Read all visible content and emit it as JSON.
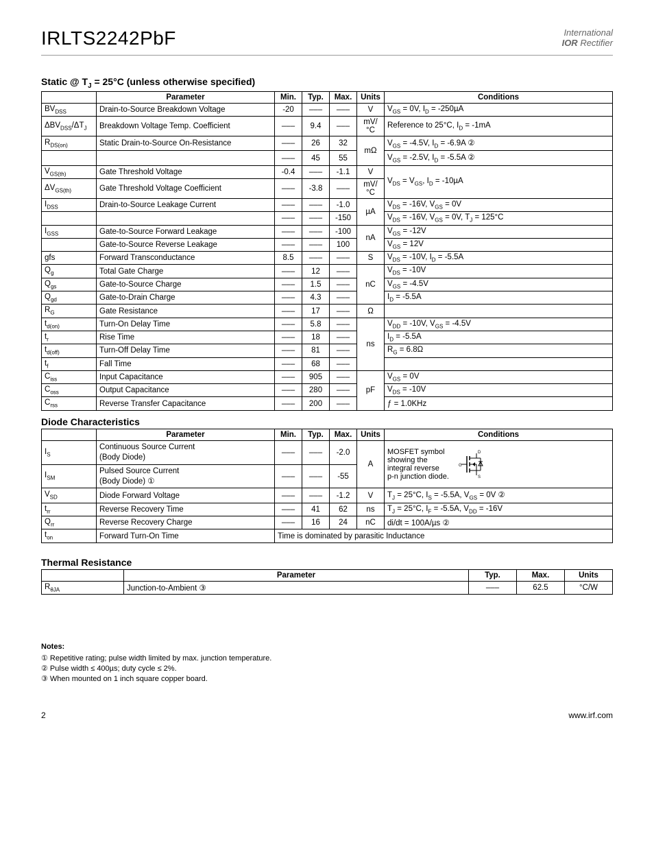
{
  "header": {
    "part": "IRLTS2242PbF",
    "logo1": "International",
    "logo2a": "IOR",
    "logo2b": " Rectifier"
  },
  "static": {
    "title": "Static @ T",
    "title_sub": "J",
    "title_rest": " = 25°C (unless otherwise specified)",
    "headers": {
      "param": "Parameter",
      "min": "Min.",
      "typ": "Typ.",
      "max": "Max.",
      "units": "Units",
      "cond": "Conditions"
    },
    "rows": [
      {
        "sym": "BV",
        "sub": "DSS",
        "param": "Drain-to-Source Breakdown Voltage",
        "min": "-20",
        "typ": "–––",
        "max": "–––",
        "units": "V",
        "cond": "V<sub>GS</sub> = 0V, I<sub>D</sub> = -250µA"
      },
      {
        "sym": "ΔBV",
        "sub": "DSS",
        "sym2": "/ΔT",
        "sub2": "J",
        "param": "Breakdown Voltage Temp. Coefficient",
        "min": "–––",
        "typ": "9.4",
        "max": "–––",
        "units": "mV/°C",
        "cond": "Reference to 25°C, I<sub>D</sub> = -1mA"
      },
      {
        "sym": "R",
        "sub": "DS(on)",
        "param": "Static Drain-to-Source On-Resistance",
        "min": "–––",
        "typ": "26",
        "max": "32",
        "units": "mΩ",
        "units_rowspan": 2,
        "cond": "V<sub>GS</sub> = -4.5V, I<sub>D</sub> = -6.9A ②"
      },
      {
        "sym": "",
        "sub": "",
        "param": "",
        "min": "–––",
        "typ": "45",
        "max": "55",
        "cond": "V<sub>GS</sub> = -2.5V, I<sub>D</sub> = -5.5A ②"
      },
      {
        "sym": "V",
        "sub": "GS(th)",
        "param": "Gate Threshold Voltage",
        "min": "-0.4",
        "typ": "–––",
        "max": "-1.1",
        "units": "V",
        "cond": "V<sub>DS</sub> = V<sub>GS</sub>, I<sub>D</sub> = -10µA",
        "cond_rowspan": 2
      },
      {
        "sym": "ΔV",
        "sub": "GS(th)",
        "param": "Gate Threshold Voltage Coefficient",
        "min": "–––",
        "typ": "-3.8",
        "max": "–––",
        "units": "mV/°C"
      },
      {
        "sym": "I",
        "sub": "DSS",
        "param": "Drain-to-Source Leakage Current",
        "min": "–––",
        "typ": "–––",
        "max": "-1.0",
        "units": "µA",
        "units_rowspan": 2,
        "cond": "V<sub>DS</sub> = -16V, V<sub>GS</sub> = 0V"
      },
      {
        "sym": "",
        "sub": "",
        "param": "",
        "min": "–––",
        "typ": "–––",
        "max": "-150",
        "cond": "V<sub>DS</sub> = -16V, V<sub>GS</sub> = 0V, T<sub>J</sub> = 125°C"
      },
      {
        "sym": "I",
        "sub": "GSS",
        "param": "Gate-to-Source Forward Leakage",
        "min": "–––",
        "typ": "–––",
        "max": "-100",
        "units": "nA",
        "units_rowspan": 2,
        "cond": "V<sub>GS</sub> = -12V"
      },
      {
        "sym": "",
        "sub": "",
        "param": "Gate-to-Source Reverse Leakage",
        "min": "–––",
        "typ": "–––",
        "max": "100",
        "cond": "V<sub>GS</sub> = 12V"
      },
      {
        "sym": "gfs",
        "sub": "",
        "param": "Forward Transconductance",
        "min": "8.5",
        "typ": "–––",
        "max": "–––",
        "units": "S",
        "cond": "V<sub>DS</sub> = -10V, I<sub>D</sub> = -5.5A"
      },
      {
        "sym": "Q",
        "sub": "g",
        "param": "Total Gate Charge",
        "min": "–––",
        "typ": "12",
        "max": "–––",
        "units": "nC",
        "units_rowspan": 3,
        "cond": "V<sub>DS</sub> = -10V"
      },
      {
        "sym": "Q",
        "sub": "gs",
        "param": "Gate-to-Source Charge",
        "min": "–––",
        "typ": "1.5",
        "max": "–––",
        "cond": "V<sub>GS</sub> = -4.5V"
      },
      {
        "sym": "Q",
        "sub": "gd",
        "param": "Gate-to-Drain Charge",
        "min": "–––",
        "typ": "4.3",
        "max": "–––",
        "cond": "I<sub>D</sub> = -5.5A"
      },
      {
        "sym": "R",
        "sub": "G",
        "param": "Gate Resistance",
        "min": "–––",
        "typ": "17",
        "max": "–––",
        "units": "Ω",
        "cond": ""
      },
      {
        "sym": "t",
        "sub": "d(on)",
        "param": "Turn-On Delay Time",
        "min": "–––",
        "typ": "5.8",
        "max": "–––",
        "units": "ns",
        "units_rowspan": 4,
        "cond": "V<sub>DD</sub> = -10V, V<sub>GS</sub> = -4.5V"
      },
      {
        "sym": "t",
        "sub": "r",
        "param": "Rise Time",
        "min": "–––",
        "typ": "18",
        "max": "–––",
        "cond": "I<sub>D</sub> = -5.5A"
      },
      {
        "sym": "t",
        "sub": "d(off)",
        "param": "Turn-Off Delay Time",
        "min": "–––",
        "typ": "81",
        "max": "–––",
        "cond": "R<sub>G</sub> = 6.8Ω"
      },
      {
        "sym": "t",
        "sub": "f",
        "param": "Fall Time",
        "min": "–––",
        "typ": "68",
        "max": "–––",
        "cond": ""
      },
      {
        "sym": "C",
        "sub": "iss",
        "param": "Input Capacitance",
        "min": "–––",
        "typ": "905",
        "max": "–––",
        "units": "pF",
        "units_rowspan": 3,
        "cond": "V<sub>GS</sub> = 0V"
      },
      {
        "sym": "C",
        "sub": "oss",
        "param": "Output Capacitance",
        "min": "–––",
        "typ": "280",
        "max": "–––",
        "cond": "V<sub>DS</sub> = -10V"
      },
      {
        "sym": "C",
        "sub": "rss",
        "param": "Reverse Transfer Capacitance",
        "min": "–––",
        "typ": "200",
        "max": "–––",
        "cond": "ƒ = 1.0KHz"
      }
    ]
  },
  "diode": {
    "title": "Diode Characteristics",
    "headers": {
      "param": "Parameter",
      "min": "Min.",
      "typ": "Typ.",
      "max": "Max.",
      "units": "Units",
      "cond": "Conditions"
    },
    "rows": [
      {
        "sym": "I",
        "sub": "S",
        "param": "Continuous Source Current",
        "param2": "(Body Diode)",
        "min": "–––",
        "typ": "–––",
        "max": "-2.0",
        "units": "A",
        "units_rowspan": 2
      },
      {
        "sym": "I",
        "sub": "SM",
        "param": "Pulsed Source Current",
        "param2": "(Body Diode)   ①",
        "min": "–––",
        "typ": "–––",
        "max": "-55"
      },
      {
        "sym": "V",
        "sub": "SD",
        "param": "Diode Forward Voltage",
        "min": "–––",
        "typ": "–––",
        "max": "-1.2",
        "units": "V",
        "cond": "T<sub>J</sub> = 25°C, I<sub>S</sub> = -5.5A, V<sub>GS</sub> = 0V ②"
      },
      {
        "sym": "t",
        "sub": "rr",
        "param": "Reverse Recovery Time",
        "min": "–––",
        "typ": "41",
        "max": "62",
        "units": "ns",
        "cond": "T<sub>J</sub> = 25°C, I<sub>F</sub> = -5.5A, V<sub>DD</sub> = -16V"
      },
      {
        "sym": "Q",
        "sub": "rr",
        "param": "Reverse Recovery Charge",
        "min": "–––",
        "typ": "16",
        "max": "24",
        "units": "nC",
        "cond": "di/dt = 100A/µs ②"
      },
      {
        "sym": "t",
        "sub": "on",
        "param": "Forward Turn-On Time",
        "merged": "Time is dominated by parasitic Inductance"
      }
    ],
    "mosfet_text1": "MOSFET symbol",
    "mosfet_text2": "showing  the",
    "mosfet_text3": "integral reverse",
    "mosfet_text4": "p-n junction diode."
  },
  "thermal": {
    "title": "Thermal Resistance",
    "headers": {
      "param": "Parameter",
      "typ": "Typ.",
      "max": "Max.",
      "units": "Units"
    },
    "row": {
      "sym": "R",
      "sub": "θJA",
      "param": "Junction-to-Ambient ③",
      "typ": "–––",
      "max": "62.5",
      "units": "°C/W"
    }
  },
  "notes": {
    "title": "Notes:",
    "n1": "① Repetitive rating;  pulse width limited by max. junction temperature.",
    "n2": "② Pulse width ≤ 400µs; duty cycle ≤ 2%.",
    "n3": "③ When mounted on 1 inch square  copper board."
  },
  "footer": {
    "page": "2",
    "url": "www.irf.com"
  }
}
